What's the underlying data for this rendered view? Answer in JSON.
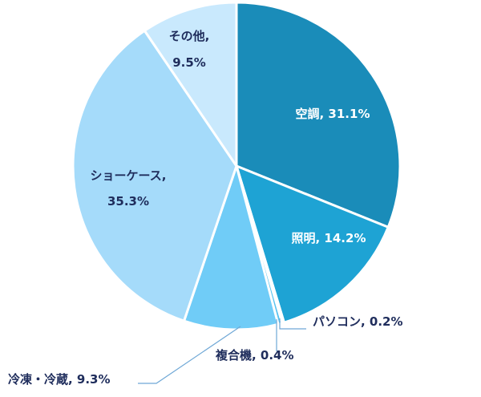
{
  "chart_data": {
    "type": "pie",
    "title": "",
    "start_angle": "12 o'clock",
    "direction": "clockwise",
    "slices": [
      {
        "label": "空調",
        "value": 31.1,
        "value_text": "31.1%",
        "color": "#1a8cb9",
        "text_color": "#ffffff",
        "label_lines": [
          "空調, 31.1%"
        ]
      },
      {
        "label": "照明",
        "value": 14.2,
        "value_text": "14.2%",
        "color": "#1ea3d4",
        "text_color": "#ffffff",
        "label_lines": [
          "照明, 14.2%"
        ]
      },
      {
        "label": "パソコン",
        "value": 0.2,
        "value_text": "0.2%",
        "color": "#3bb3e4",
        "text_color": "#1f2d5c",
        "label_lines": [
          "パソコン, 0.2%"
        ]
      },
      {
        "label": "複合機",
        "value": 0.4,
        "value_text": "0.4%",
        "color": "#55c1ef",
        "text_color": "#1f2d5c",
        "label_lines": [
          "複合機, 0.4%"
        ]
      },
      {
        "label": "冷凍・冷蔵",
        "value": 9.3,
        "value_text": "9.3%",
        "color": "#70ccf7",
        "text_color": "#1f2d5c",
        "label_lines": [
          "冷凍・冷蔵, 9.3%"
        ]
      },
      {
        "label": "ショーケース",
        "value": 35.3,
        "value_text": "35.3%",
        "color": "#a5dbfa",
        "text_color": "#1f2d5c",
        "label_lines": [
          "ショーケース,",
          "35.3%"
        ]
      },
      {
        "label": "その他",
        "value": 9.5,
        "value_text": "9.5%",
        "color": "#c9e9fd",
        "text_color": "#1f2d5c",
        "label_lines": [
          "その他,",
          "9.5%"
        ]
      }
    ]
  }
}
